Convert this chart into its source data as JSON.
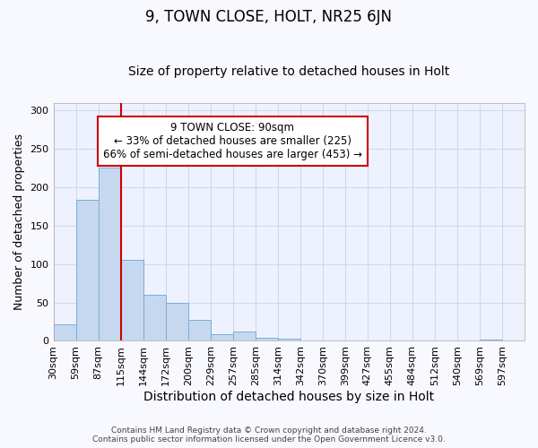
{
  "title": "9, TOWN CLOSE, HOLT, NR25 6JN",
  "subtitle": "Size of property relative to detached houses in Holt",
  "xlabel": "Distribution of detached houses by size in Holt",
  "ylabel": "Number of detached properties",
  "bar_values": [
    22,
    184,
    225,
    106,
    60,
    50,
    27,
    9,
    12,
    4,
    3,
    0,
    0,
    0,
    0,
    0,
    0,
    0,
    0,
    2,
    0
  ],
  "categories": [
    "30sqm",
    "59sqm",
    "87sqm",
    "115sqm",
    "144sqm",
    "172sqm",
    "200sqm",
    "229sqm",
    "257sqm",
    "285sqm",
    "314sqm",
    "342sqm",
    "370sqm",
    "399sqm",
    "427sqm",
    "455sqm",
    "484sqm",
    "512sqm",
    "540sqm",
    "569sqm",
    "597sqm"
  ],
  "bar_color": "#c5d8f0",
  "bar_edge_color": "#7badd4",
  "vline_x_index": 2,
  "vline_color": "#cc0000",
  "annotation_text": "9 TOWN CLOSE: 90sqm\n← 33% of detached houses are smaller (225)\n66% of semi-detached houses are larger (453) →",
  "annotation_box_color": "white",
  "annotation_box_edge": "#cc0000",
  "ylim": [
    0,
    310
  ],
  "yticks": [
    0,
    50,
    100,
    150,
    200,
    250,
    300
  ],
  "footer": "Contains HM Land Registry data © Crown copyright and database right 2024.\nContains public sector information licensed under the Open Government Licence v3.0.",
  "plot_bg_color": "#eef2ff",
  "fig_bg_color": "#f8f8ff",
  "grid_color": "#d0d8f0",
  "title_fontsize": 12,
  "subtitle_fontsize": 10,
  "tick_fontsize": 8,
  "ylabel_fontsize": 9,
  "xlabel_fontsize": 10
}
